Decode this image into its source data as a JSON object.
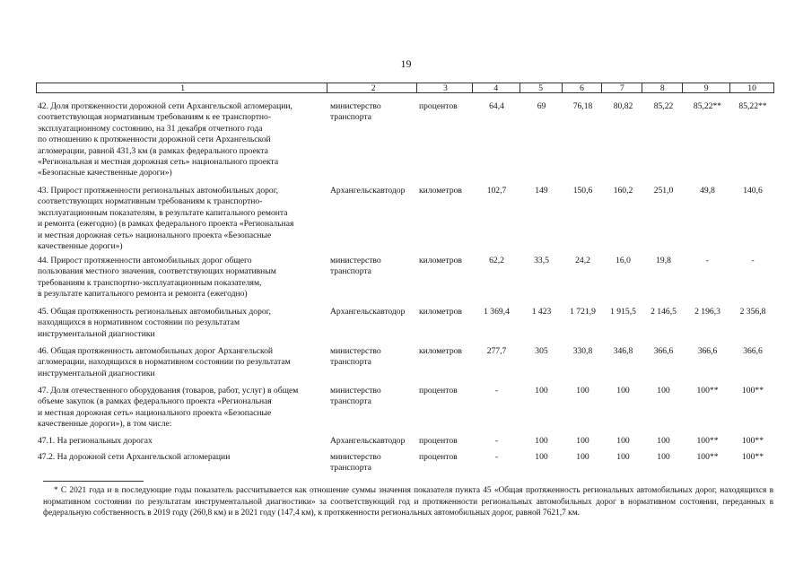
{
  "page_number": "19",
  "table": {
    "headers": [
      "1",
      "2",
      "3",
      "4",
      "5",
      "6",
      "7",
      "8",
      "9",
      "10"
    ],
    "rows": [
      {
        "indicator": "42. Доля протяженности дорожной сети Архангельской агломерации,\nсоответствующая нормативным требованиям к ее транспортно-\nэксплуатационному состоянию, на 31 декабря отчетного года\nпо отношению к протяженности дорожной сети Архангельской\nагломерации, равной 431,3 км (в рамках федерального проекта\n«Региональная и местная дорожная сеть» национального проекта\n«Безопасные качественные дороги»)",
        "responsible": "министерство\nтранспорта",
        "unit": "процентов",
        "values": [
          "64,4",
          "69",
          "76,18",
          "80,82",
          "85,22",
          "85,22**",
          "85,22**"
        ]
      },
      {
        "indicator": "43. Прирост протяженности региональных автомобильных дорог,\nсоответствующих нормативным требованиям к транспортно-\nэксплуатационным показателям, в результате капитального ремонта\nи ремонта (ежегодно) (в рамках федерального проекта «Региональная\nи местная дорожная сеть» национального проекта «Безопасные\nкачественные дороги»)",
        "responsible": "Архангельскавтодор",
        "unit": "километров",
        "values": [
          "102,7",
          "149",
          "150,6",
          "160,2",
          "251,0",
          "49,8",
          "140,6"
        ]
      },
      {
        "indicator": "44. Прирост протяженности автомобильных дорог общего\nпользования местного значения, соответствующих нормативным\nтребованиям к транспортно-эксплуатационным показателям,\nв результате капитального ремонта и ремонта (ежегодно)",
        "responsible": "министерство\nтранспорта",
        "unit": "километров",
        "values": [
          "62,2",
          "33,5",
          "24,2",
          "16,0",
          "19,8",
          "-",
          "-"
        ]
      },
      {
        "indicator": "45. Общая протяженность региональных автомобильных дорог,\nнаходящихся в нормативном состоянии по результатам\nинструментальной диагностики",
        "responsible": "Архангельскавтодор",
        "unit": "километров",
        "values": [
          "1 369,4",
          "1 423",
          "1 721,9",
          "1 915,5",
          "2 146,5",
          "2 196,3",
          "2 356,8"
        ]
      },
      {
        "indicator": "46. Общая протяженность автомобильных дорог Архангельской\nагломерации, находящихся в нормативном состоянии по результатам\nинструментальной диагностики",
        "responsible": "министерство\nтранспорта",
        "unit": "километров",
        "values": [
          "277,7",
          "305",
          "330,8",
          "346,8",
          "366,6",
          "366,6",
          "366,6"
        ]
      },
      {
        "indicator": "47. Доля отечественного оборудования (товаров, работ, услуг) в общем\nобъеме закупок (в рамках федерального проекта «Региональная\nи местная дорожная сеть» национального проекта «Безопасные\nкачественные дороги»), в том числе:",
        "responsible": "министерство\nтранспорта",
        "unit": "процентов",
        "values": [
          "-",
          "100",
          "100",
          "100",
          "100",
          "100**",
          "100**"
        ]
      },
      {
        "indicator": "47.1. На региональных дорогах",
        "responsible": "Архангельскавтодор",
        "unit": "процентов",
        "values": [
          "-",
          "100",
          "100",
          "100",
          "100",
          "100**",
          "100**"
        ]
      },
      {
        "indicator": "47.2. На дорожной сети Архангельской агломерации",
        "responsible": "министерство\nтранспорта",
        "unit": "процентов",
        "values": [
          "-",
          "100",
          "100",
          "100",
          "100",
          "100**",
          "100**"
        ]
      }
    ]
  },
  "footnote": "* С 2021 года и в последующие годы показатель рассчитывается как отношение суммы значения показателя пункта 45 «Общая протяженность региональных автомобильных дорог, находящихся в нормативном состоянии по результатам инструментальной диагностики» за соответствующий год и протяженности региональных автомобильных дорог в нормативном состоянии, переданных в федеральную собственность в 2019 году (260,8 км) и в 2021 году (147,4 км), к протяженности региональных автомобильных дорог, равной 7621,7 км."
}
